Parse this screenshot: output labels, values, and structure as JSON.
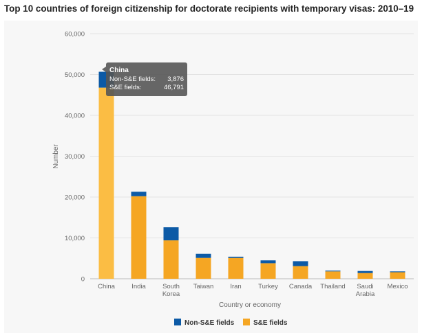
{
  "chart_data": {
    "type": "bar",
    "stacked": true,
    "title": "Top 10 countries of foreign citizenship for doctorate recipients with temporary visas: 2010–19",
    "xlabel": "Country or economy",
    "ylabel": "Number",
    "ylim": [
      0,
      60000
    ],
    "yticks": [
      "0",
      "10,000",
      "20,000",
      "30,000",
      "40,000",
      "50,000",
      "60,000"
    ],
    "grid": true,
    "legend_position": "bottom",
    "categories": [
      [
        "China"
      ],
      [
        "India"
      ],
      [
        "South",
        "Korea"
      ],
      [
        "Taiwan"
      ],
      [
        "Iran"
      ],
      [
        "Turkey"
      ],
      [
        "Canada"
      ],
      [
        "Thailand"
      ],
      [
        "Saudi",
        "Arabia"
      ],
      [
        "Mexico"
      ]
    ],
    "series": [
      {
        "name": "S&E fields",
        "color": "#f5a623",
        "values": [
          46791,
          20200,
          9400,
          5100,
          5100,
          3800,
          3100,
          1800,
          1400,
          1600
        ]
      },
      {
        "name": "Non-S&E fields",
        "color": "#0c5aa6",
        "values": [
          3876,
          1100,
          3200,
          1000,
          300,
          700,
          1200,
          200,
          500,
          200
        ]
      }
    ],
    "tooltip": {
      "title": "China",
      "rows": [
        {
          "label": "Non-S&E fields:",
          "value": "3,876"
        },
        {
          "label": "S&E fields:",
          "value": "46,791"
        }
      ]
    }
  }
}
